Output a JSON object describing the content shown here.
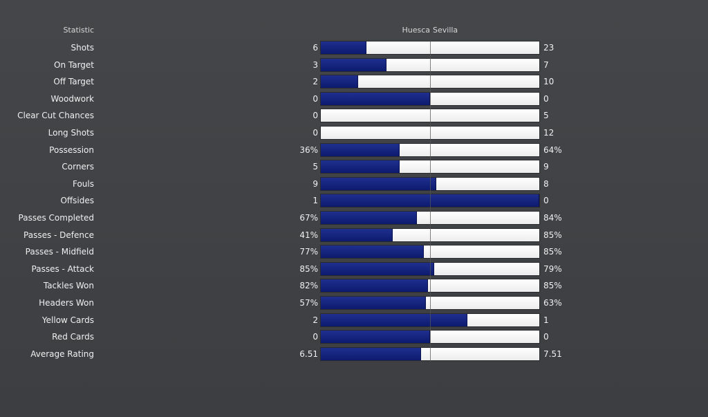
{
  "header": {
    "statistic_label": "Statistic",
    "home_team": "Huesca",
    "away_team": "Sevilla"
  },
  "colors": {
    "home_bar": "#132080",
    "away_bar": "#f4f4f4",
    "background": "#414346"
  },
  "rows": [
    {
      "label": "Shots",
      "home": "6",
      "away": "23",
      "home_share": 0.21
    },
    {
      "label": "On Target",
      "home": "3",
      "away": "7",
      "home_share": 0.3
    },
    {
      "label": "Off Target",
      "home": "2",
      "away": "10",
      "home_share": 0.17
    },
    {
      "label": "Woodwork",
      "home": "0",
      "away": "0",
      "home_share": 0.5
    },
    {
      "label": "Clear Cut Chances",
      "home": "0",
      "away": "5",
      "home_share": 0.0
    },
    {
      "label": "Long Shots",
      "home": "0",
      "away": "12",
      "home_share": 0.0
    },
    {
      "label": "Possession",
      "home": "36%",
      "away": "64%",
      "home_share": 0.36
    },
    {
      "label": "Corners",
      "home": "5",
      "away": "9",
      "home_share": 0.36
    },
    {
      "label": "Fouls",
      "home": "9",
      "away": "8",
      "home_share": 0.53
    },
    {
      "label": "Offsides",
      "home": "1",
      "away": "0",
      "home_share": 1.0
    },
    {
      "label": "Passes Completed",
      "home": "67%",
      "away": "84%",
      "home_share": 0.44
    },
    {
      "label": "Passes - Defence",
      "home": "41%",
      "away": "85%",
      "home_share": 0.33
    },
    {
      "label": "Passes - Midfield",
      "home": "77%",
      "away": "85%",
      "home_share": 0.47
    },
    {
      "label": "Passes - Attack",
      "home": "85%",
      "away": "79%",
      "home_share": 0.52
    },
    {
      "label": "Tackles Won",
      "home": "82%",
      "away": "85%",
      "home_share": 0.49
    },
    {
      "label": "Headers Won",
      "home": "57%",
      "away": "63%",
      "home_share": 0.48
    },
    {
      "label": "Yellow Cards",
      "home": "2",
      "away": "1",
      "home_share": 0.67
    },
    {
      "label": "Red Cards",
      "home": "0",
      "away": "0",
      "home_share": 0.5
    },
    {
      "label": "Average Rating",
      "home": "6.51",
      "away": "7.51",
      "home_share": 0.46
    }
  ]
}
